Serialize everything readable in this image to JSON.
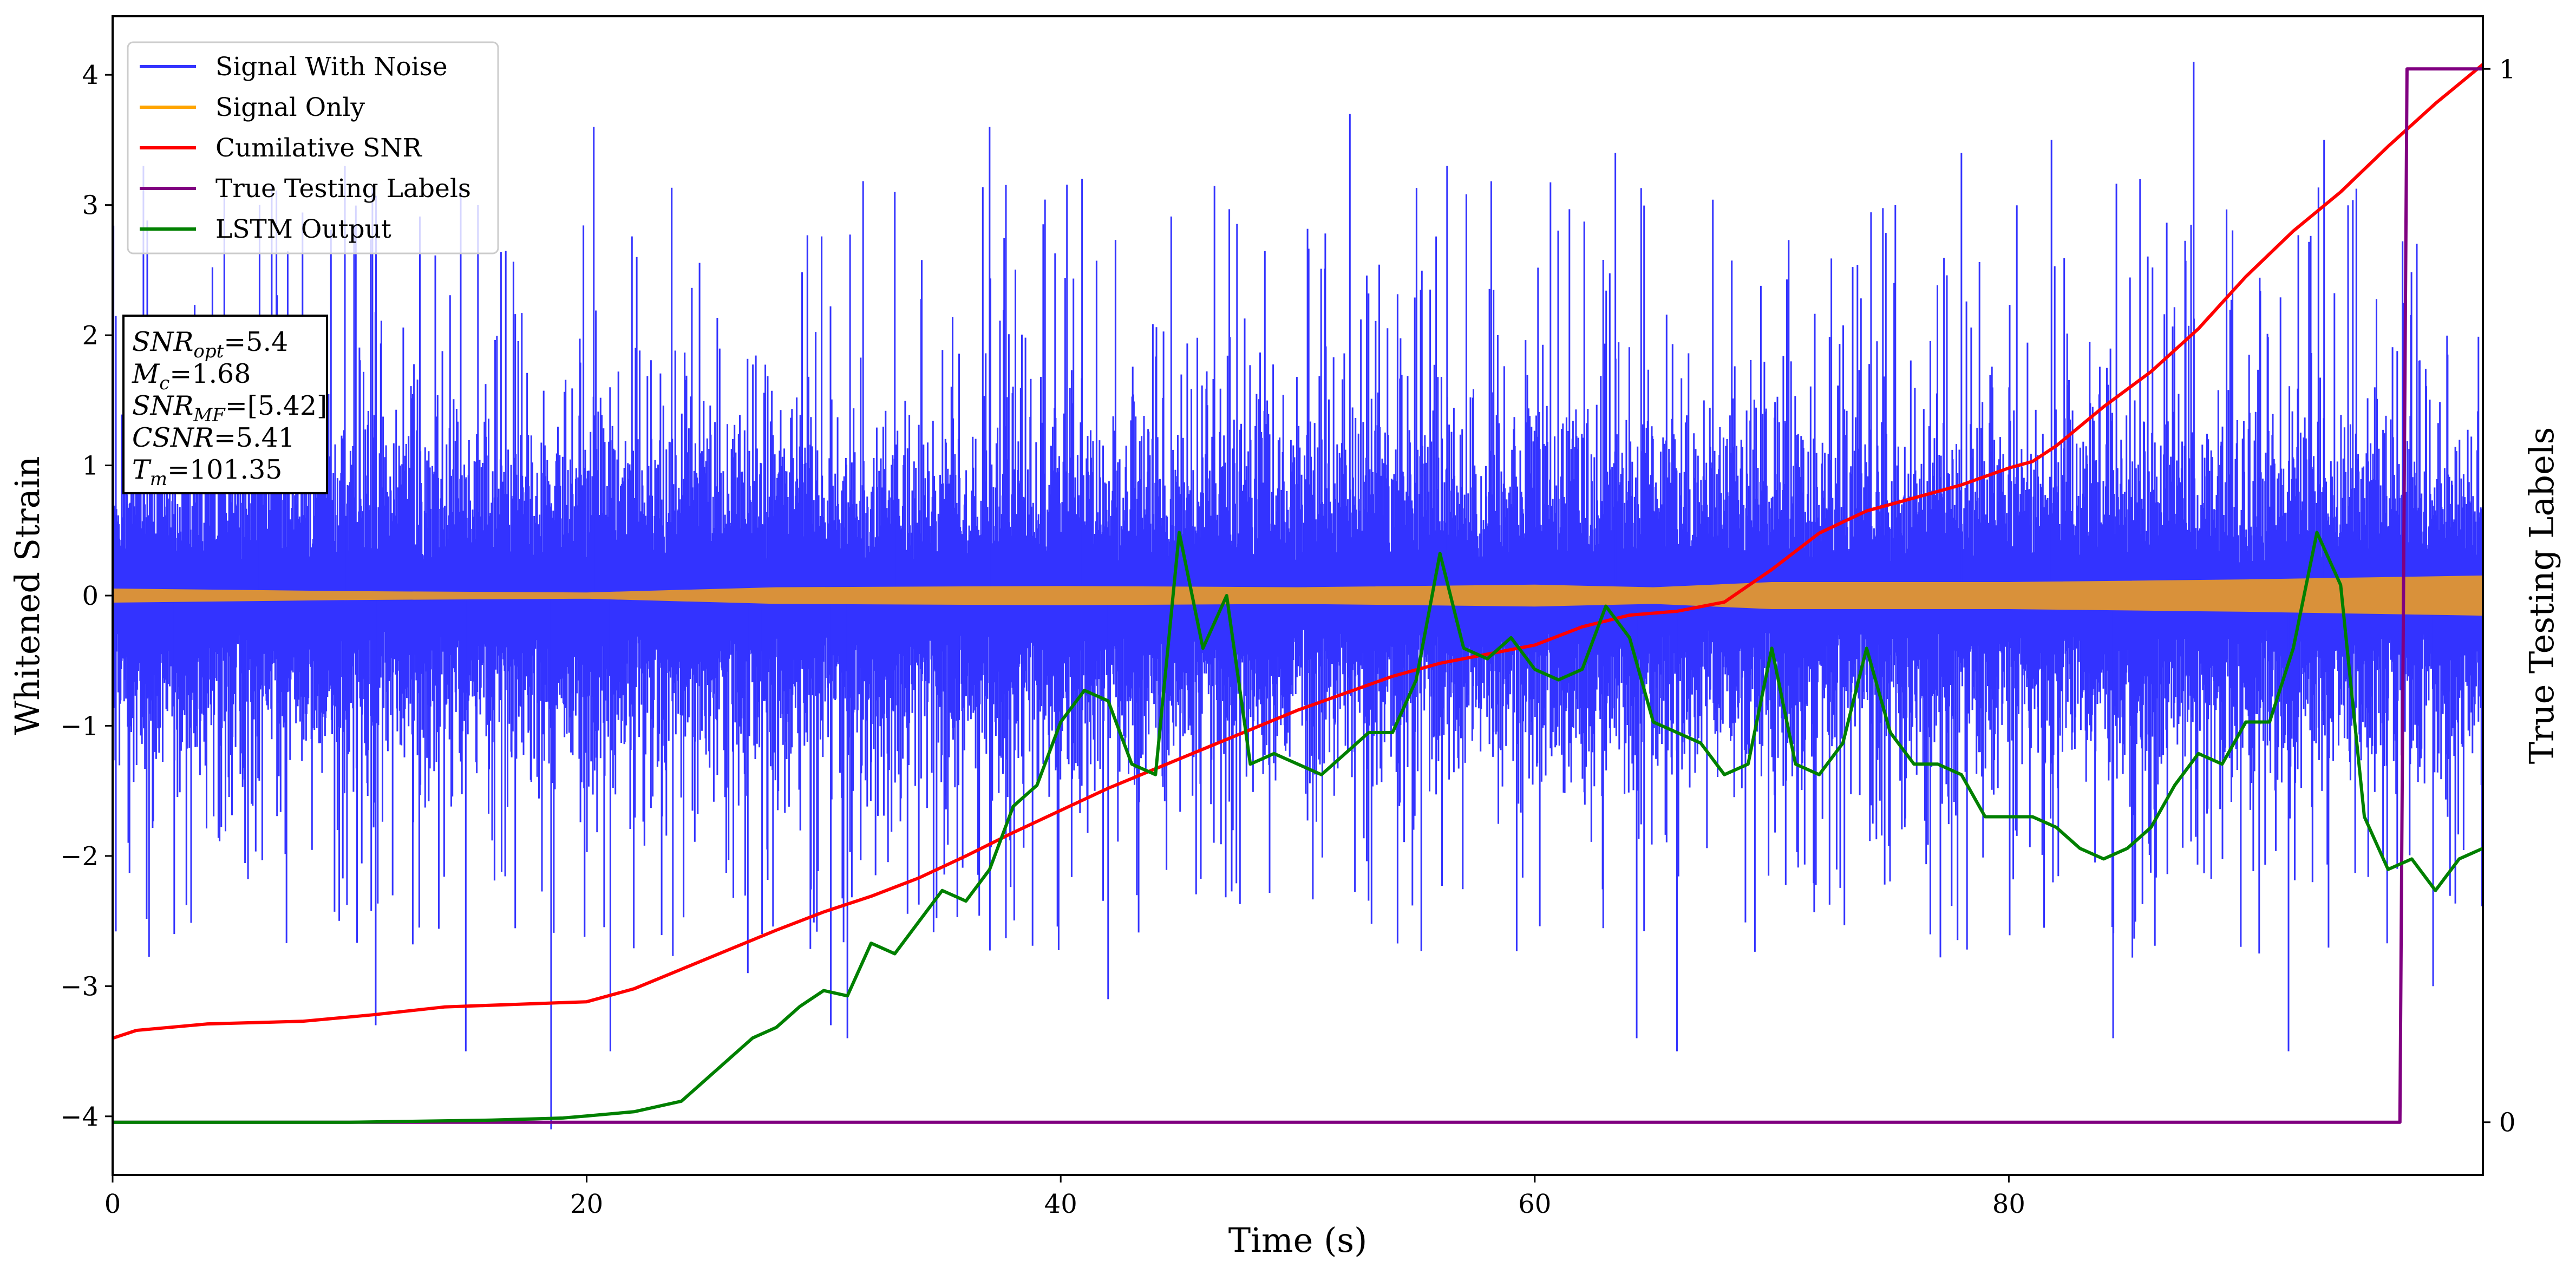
{
  "chart_data": {
    "type": "line",
    "xlabel": "Time (s)",
    "ylabel": "Whitened Strain",
    "y2label": "True Testing Labels",
    "xlim": [
      0,
      100
    ],
    "ylim": [
      -4.45,
      4.45
    ],
    "y2lim": [
      -0.05,
      1.05
    ],
    "x_ticks": [
      0,
      20,
      40,
      60,
      80
    ],
    "y_ticks": [
      -4,
      -3,
      -2,
      -1,
      0,
      1,
      2,
      3,
      4
    ],
    "y2_ticks": [
      0,
      1
    ],
    "legend_position": "upper-left",
    "legend": [
      {
        "label": "Signal With Noise",
        "color": "#3333ff"
      },
      {
        "label": "Signal Only",
        "color": "#ffa500"
      },
      {
        "label": "Cumilative SNR",
        "color": "#ff0000"
      },
      {
        "label": "True Testing Labels",
        "color": "#800080"
      },
      {
        "label": "LSTM Output",
        "color": "#008000"
      }
    ],
    "annotation": [
      {
        "var": "SNR",
        "sub": "opt",
        "value": "=5.4"
      },
      {
        "var": "M",
        "sub": "c",
        "value": "=1.68"
      },
      {
        "var": "SNR",
        "sub": "MF",
        "value": "=[5.42]"
      },
      {
        "var": "CSNR",
        "sub": "",
        "value": "=5.41"
      },
      {
        "var": "T",
        "sub": "m",
        "value": "=101.35"
      }
    ],
    "series": [
      {
        "name": "Signal With Noise",
        "axis": "left",
        "color": "#3333ff",
        "style": "dense-noise",
        "envelope_typical": [
          -1.5,
          1.5
        ],
        "peaks": [
          [
            1.3,
            3.3
          ],
          [
            2.6,
            -2.6
          ],
          [
            6.2,
            3.0
          ],
          [
            9.8,
            3.3
          ],
          [
            11.1,
            -3.3
          ],
          [
            14.9,
            -3.5
          ],
          [
            18.5,
            -4.1
          ],
          [
            20.3,
            3.6
          ],
          [
            21.0,
            -3.5
          ],
          [
            26.8,
            -2.9
          ],
          [
            27.4,
            -2.6
          ],
          [
            30.3,
            -3.3
          ],
          [
            31.0,
            -3.4
          ],
          [
            33.0,
            3.1
          ],
          [
            37.0,
            3.6
          ],
          [
            40.9,
            3.2
          ],
          [
            42.0,
            -3.1
          ],
          [
            52.2,
            3.7
          ],
          [
            56.3,
            3.3
          ],
          [
            63.4,
            3.4
          ],
          [
            64.3,
            -3.4
          ],
          [
            66.0,
            -3.5
          ],
          [
            78.0,
            3.4
          ],
          [
            81.8,
            3.5
          ],
          [
            84.4,
            -3.4
          ],
          [
            87.8,
            4.1
          ],
          [
            91.8,
            -3.5
          ],
          [
            93.3,
            3.5
          ],
          [
            97.9,
            -3.0
          ]
        ]
      },
      {
        "name": "Signal Only",
        "axis": "left",
        "color": "#ffa500",
        "style": "band",
        "x": [
          0,
          10,
          20,
          28,
          40,
          50,
          60,
          65,
          70,
          80,
          90,
          100
        ],
        "amplitude": [
          0.05,
          0.03,
          0.02,
          0.06,
          0.07,
          0.06,
          0.08,
          0.06,
          0.1,
          0.1,
          0.12,
          0.15
        ]
      },
      {
        "name": "Cumilative SNR",
        "axis": "left",
        "color": "#ff0000",
        "x": [
          0,
          1,
          4,
          8,
          11,
          14,
          17,
          20,
          22,
          24,
          26,
          28,
          30,
          32,
          34,
          36,
          38,
          40,
          42,
          44,
          46,
          48,
          50,
          52,
          54,
          56,
          58,
          60,
          62,
          64,
          66,
          68,
          70,
          72,
          74,
          76,
          78,
          80,
          81,
          82,
          84,
          86,
          88,
          90,
          92,
          94,
          96,
          98,
          100
        ],
        "y": [
          -3.4,
          -3.34,
          -3.29,
          -3.27,
          -3.22,
          -3.16,
          -3.14,
          -3.12,
          -3.02,
          -2.87,
          -2.72,
          -2.57,
          -2.43,
          -2.31,
          -2.17,
          -2.0,
          -1.82,
          -1.65,
          -1.48,
          -1.33,
          -1.18,
          -1.03,
          -0.88,
          -0.75,
          -0.62,
          -0.52,
          -0.45,
          -0.38,
          -0.24,
          -0.15,
          -0.12,
          -0.05,
          0.2,
          0.48,
          0.65,
          0.75,
          0.85,
          0.98,
          1.03,
          1.15,
          1.45,
          1.72,
          2.05,
          2.45,
          2.8,
          3.1,
          3.45,
          3.78,
          4.08
        ]
      },
      {
        "name": "True Testing Labels",
        "axis": "right",
        "color": "#800080",
        "x": [
          0,
          96.5,
          96.8,
          100
        ],
        "y": [
          0,
          0,
          1,
          1
        ]
      },
      {
        "name": "LSTM Output",
        "axis": "right",
        "color": "#008000",
        "x": [
          0,
          10,
          16,
          19,
          20,
          22,
          24,
          26,
          27,
          28,
          29,
          30,
          31,
          32,
          33,
          34,
          35,
          36,
          37,
          38,
          39,
          40,
          41,
          42,
          43,
          44,
          45,
          46,
          47,
          48,
          49,
          50,
          51,
          52,
          53,
          54,
          55,
          56,
          57,
          58,
          59,
          60,
          61,
          62,
          63,
          64,
          65,
          66,
          67,
          68,
          69,
          70,
          71,
          72,
          73,
          74,
          75,
          76,
          77,
          78,
          79,
          80,
          81,
          82,
          83,
          84,
          85,
          86,
          87,
          88,
          89,
          90,
          91,
          92,
          93,
          94,
          95,
          96,
          97,
          98,
          99,
          100
        ],
        "y": [
          0,
          0,
          0.002,
          0.004,
          0.006,
          0.01,
          0.02,
          0.06,
          0.08,
          0.09,
          0.11,
          0.125,
          0.12,
          0.17,
          0.16,
          0.19,
          0.22,
          0.21,
          0.24,
          0.3,
          0.32,
          0.38,
          0.41,
          0.4,
          0.34,
          0.33,
          0.56,
          0.45,
          0.5,
          0.34,
          0.35,
          0.34,
          0.33,
          0.35,
          0.37,
          0.37,
          0.42,
          0.54,
          0.45,
          0.44,
          0.46,
          0.43,
          0.42,
          0.43,
          0.49,
          0.46,
          0.38,
          0.37,
          0.36,
          0.33,
          0.34,
          0.45,
          0.34,
          0.33,
          0.36,
          0.45,
          0.37,
          0.34,
          0.34,
          0.33,
          0.29,
          0.29,
          0.29,
          0.28,
          0.26,
          0.25,
          0.26,
          0.28,
          0.32,
          0.35,
          0.34,
          0.38,
          0.38,
          0.45,
          0.56,
          0.51,
          0.29,
          0.24,
          0.25,
          0.22,
          0.25,
          0.26
        ]
      }
    ]
  }
}
